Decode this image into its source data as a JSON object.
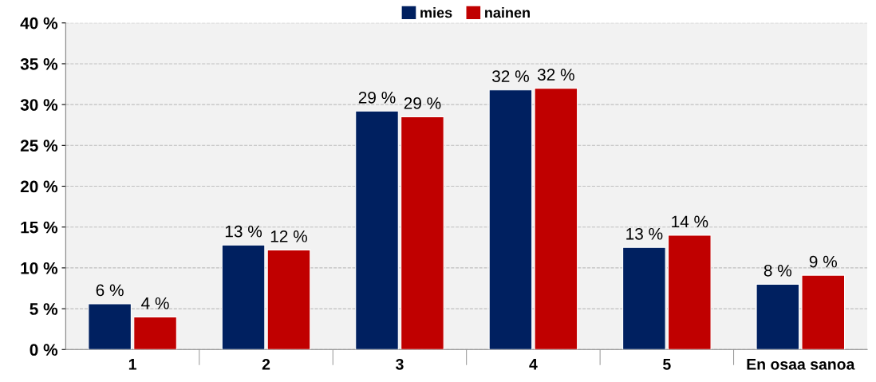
{
  "chart_data": {
    "type": "bar",
    "categories": [
      "1",
      "2",
      "3",
      "4",
      "5",
      "En osaa sanoa"
    ],
    "series": [
      {
        "name": "mies",
        "color": "#002060",
        "values": [
          5.6,
          12.8,
          29.2,
          31.8,
          12.5,
          8.0
        ],
        "value_labels": [
          "6 %",
          "13 %",
          "29 %",
          "32 %",
          "13 %",
          "8 %"
        ]
      },
      {
        "name": "nainen",
        "color": "#c00000",
        "values": [
          4.0,
          12.2,
          28.5,
          32.0,
          14.0,
          9.1
        ],
        "value_labels": [
          "4 %",
          "12 %",
          "29 %",
          "32 %",
          "14 %",
          "9 %"
        ]
      }
    ],
    "ylim": [
      0,
      40
    ],
    "yticks": [
      {
        "value": 0,
        "label": "0 %"
      },
      {
        "value": 5,
        "label": "5 %"
      },
      {
        "value": 10,
        "label": "10 %"
      },
      {
        "value": 15,
        "label": "15 %"
      },
      {
        "value": 20,
        "label": "20 %"
      },
      {
        "value": 25,
        "label": "25 %"
      },
      {
        "value": 30,
        "label": "30 %"
      },
      {
        "value": 35,
        "label": "35 %"
      },
      {
        "value": 40,
        "label": "40 %"
      }
    ],
    "grid": "y",
    "legend": "top"
  }
}
